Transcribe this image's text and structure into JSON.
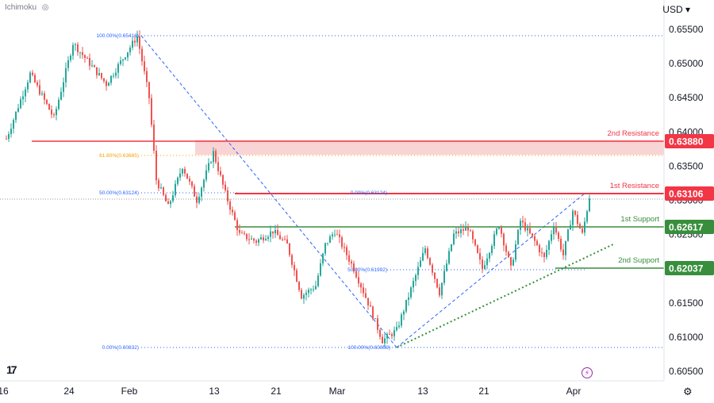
{
  "header": {
    "indicator": "Ichimoku",
    "currency": "USD"
  },
  "icons": {
    "visibility": "eye-off-icon",
    "logo": "tradingview-logo",
    "replay": "lightning-icon",
    "settings": "gear-icon"
  },
  "chart_data": {
    "type": "candlestick",
    "ylim": [
      0.6035,
      0.657
    ],
    "y_ticks": [
      "0.65500",
      "0.65000",
      "0.64500",
      "0.64000",
      "0.63500",
      "0.63000",
      "0.62500",
      "0.62000",
      "0.61500",
      "0.61000",
      "0.60500"
    ],
    "x_ticks": [
      "16",
      "24",
      "Feb",
      "13",
      "21",
      "Mar",
      "13",
      "21",
      "Apr"
    ],
    "colors": {
      "up": "#26a69a",
      "down": "#ef5350",
      "resistance": "#f23645",
      "support": "#388e3c",
      "fib": "#2962ff"
    },
    "key_points": [
      {
        "t": 0,
        "v": 0.639
      },
      {
        "t": 10,
        "v": 0.6485
      },
      {
        "t": 20,
        "v": 0.642
      },
      {
        "t": 28,
        "v": 0.653
      },
      {
        "t": 42,
        "v": 0.647
      },
      {
        "t": 55,
        "v": 0.654
      },
      {
        "t": 60,
        "v": 0.645
      },
      {
        "t": 63,
        "v": 0.633
      },
      {
        "t": 68,
        "v": 0.629
      },
      {
        "t": 74,
        "v": 0.635
      },
      {
        "t": 80,
        "v": 0.63
      },
      {
        "t": 87,
        "v": 0.637
      },
      {
        "t": 92,
        "v": 0.631
      },
      {
        "t": 98,
        "v": 0.625
      },
      {
        "t": 105,
        "v": 0.624
      },
      {
        "t": 112,
        "v": 0.6255
      },
      {
        "t": 118,
        "v": 0.6235
      },
      {
        "t": 124,
        "v": 0.616
      },
      {
        "t": 130,
        "v": 0.6175
      },
      {
        "t": 134,
        "v": 0.6235
      },
      {
        "t": 138,
        "v": 0.6255
      },
      {
        "t": 146,
        "v": 0.62
      },
      {
        "t": 152,
        "v": 0.615
      },
      {
        "t": 158,
        "v": 0.6095
      },
      {
        "t": 164,
        "v": 0.611
      },
      {
        "t": 170,
        "v": 0.617
      },
      {
        "t": 176,
        "v": 0.623
      },
      {
        "t": 182,
        "v": 0.6165
      },
      {
        "t": 188,
        "v": 0.625
      },
      {
        "t": 194,
        "v": 0.626
      },
      {
        "t": 200,
        "v": 0.62
      },
      {
        "t": 207,
        "v": 0.6265
      },
      {
        "t": 212,
        "v": 0.62
      },
      {
        "t": 216,
        "v": 0.627
      },
      {
        "t": 222,
        "v": 0.624
      },
      {
        "t": 226,
        "v": 0.6215
      },
      {
        "t": 230,
        "v": 0.6265
      },
      {
        "t": 234,
        "v": 0.622
      },
      {
        "t": 238,
        "v": 0.6285
      },
      {
        "t": 242,
        "v": 0.625
      },
      {
        "t": 245,
        "v": 0.6305
      }
    ],
    "levels": [
      {
        "label": "2nd Resistance",
        "badge": "0.63880",
        "value": 0.6388,
        "kind": "resistance"
      },
      {
        "label": "1st Resistance",
        "badge": "0.63106",
        "value": 0.63106,
        "kind": "resistance"
      },
      {
        "label": "1st Support",
        "badge": "0.62617",
        "value": 0.62617,
        "kind": "support"
      },
      {
        "label": "2nd Support",
        "badge": "0.62037",
        "value": 0.62037,
        "kind": "support"
      }
    ],
    "resistance_zone": [
      0.63665,
      0.6388
    ],
    "fib_labels": [
      {
        "text": "100.00%(0.65416)",
        "value": 0.65416
      },
      {
        "text": "61.80%(0.63665)",
        "value": 0.63665
      },
      {
        "text": "50.00%(0.63124)",
        "value": 0.63124
      },
      {
        "text": "0.00%(0.60832)",
        "value": 0.60832
      },
      {
        "text": "0.00%(0.63124)",
        "value": 0.63124
      },
      {
        "text": "50.00%(0.61992)",
        "value": 0.61992
      },
      {
        "text": "100.00%(0.60859)",
        "value": 0.60859
      }
    ]
  }
}
